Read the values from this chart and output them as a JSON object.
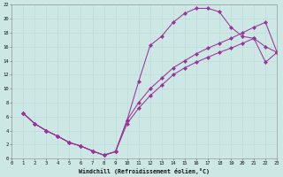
{
  "xlabel": "Windchill (Refroidissement éolien,°C)",
  "bg_color": "#cde8e4",
  "line_color": "#993399",
  "grid_color": "#b8d8d4",
  "xlim": [
    0,
    23
  ],
  "ylim": [
    0,
    22
  ],
  "xticks": [
    0,
    1,
    2,
    3,
    4,
    5,
    6,
    7,
    8,
    9,
    10,
    11,
    12,
    13,
    14,
    15,
    16,
    17,
    18,
    19,
    20,
    21,
    22,
    23
  ],
  "yticks": [
    0,
    2,
    4,
    6,
    8,
    10,
    12,
    14,
    16,
    18,
    20,
    22
  ],
  "curves": [
    {
      "x": [
        1,
        2,
        3,
        4,
        5,
        6,
        7,
        8,
        9,
        10,
        11,
        12,
        13,
        14,
        15,
        16,
        17,
        18,
        19,
        20,
        21,
        22,
        23
      ],
      "y": [
        6.5,
        5.0,
        4.0,
        3.2,
        2.3,
        1.8,
        1.1,
        0.5,
        1.0,
        5.5,
        11.0,
        16.2,
        17.5,
        19.5,
        20.8,
        21.5,
        21.5,
        21.0,
        18.8,
        17.5,
        17.2,
        16.0,
        15.2
      ]
    },
    {
      "x": [
        1,
        2,
        3,
        4,
        5,
        6,
        7,
        8,
        9,
        10,
        11,
        12,
        13,
        14,
        15,
        16,
        17,
        18,
        19,
        20,
        21,
        22,
        23
      ],
      "y": [
        6.5,
        5.0,
        4.0,
        3.2,
        2.3,
        1.8,
        1.1,
        0.5,
        1.0,
        5.5,
        8.0,
        10.0,
        11.5,
        13.0,
        14.0,
        15.0,
        15.8,
        16.5,
        17.2,
        18.0,
        18.8,
        19.5,
        15.2
      ]
    },
    {
      "x": [
        1,
        2,
        3,
        4,
        5,
        6,
        7,
        8,
        9,
        10,
        11,
        12,
        13,
        14,
        15,
        16,
        17,
        18,
        19,
        20,
        21,
        22,
        23
      ],
      "y": [
        6.5,
        5.0,
        4.0,
        3.2,
        2.3,
        1.8,
        1.1,
        0.5,
        1.0,
        5.0,
        7.2,
        9.0,
        10.5,
        12.0,
        13.0,
        13.8,
        14.5,
        15.2,
        15.8,
        16.5,
        17.2,
        13.8,
        15.2
      ]
    }
  ]
}
